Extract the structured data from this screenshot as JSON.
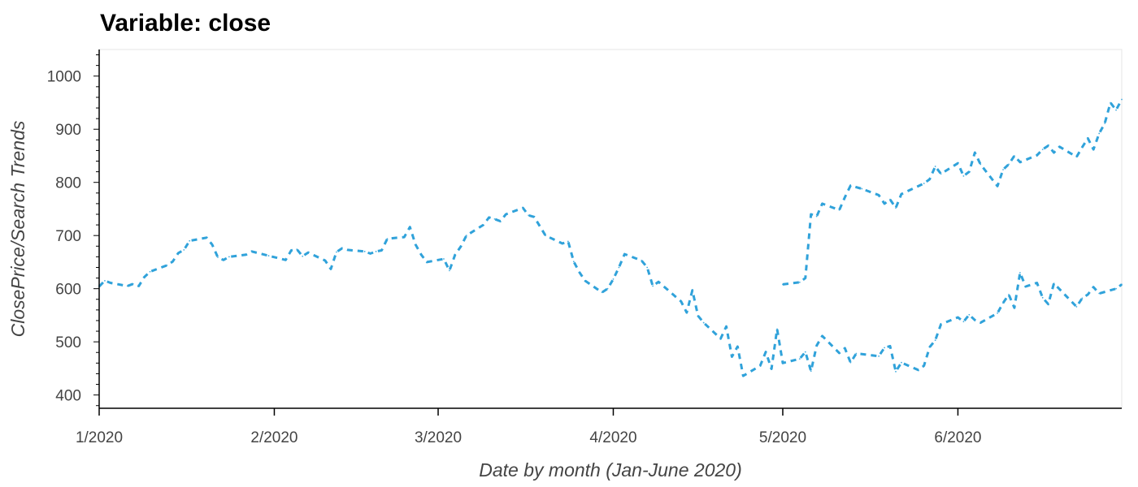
{
  "chart_data": {
    "type": "line",
    "title": "Variable: close",
    "xlabel": "Date by month (Jan-June 2020)",
    "ylabel": "ClosePrice/Search Trends",
    "xlim": [
      "2020-01-01",
      "2020-06-30"
    ],
    "ylim": [
      375,
      1050
    ],
    "x_ticks": [
      {
        "date": "2020-01-01",
        "label": "1/2020"
      },
      {
        "date": "2020-02-01",
        "label": "2/2020"
      },
      {
        "date": "2020-03-01",
        "label": "3/2020"
      },
      {
        "date": "2020-04-01",
        "label": "4/2020"
      },
      {
        "date": "2020-05-01",
        "label": "5/2020"
      },
      {
        "date": "2020-06-01",
        "label": "6/2020"
      }
    ],
    "y_ticks": [
      400,
      500,
      600,
      700,
      800,
      900,
      1000
    ],
    "grid": false,
    "series": [
      {
        "color": "#30a2da",
        "line_style": "dashed",
        "points": [
          [
            "2020-01-01",
            604
          ],
          [
            "2020-01-02",
            615
          ],
          [
            "2020-01-03",
            611
          ],
          [
            "2020-01-06",
            605
          ],
          [
            "2020-01-07",
            609
          ],
          [
            "2020-01-08",
            605
          ],
          [
            "2020-01-09",
            622
          ],
          [
            "2020-01-10",
            632
          ],
          [
            "2020-01-13",
            644
          ],
          [
            "2020-01-14",
            651
          ],
          [
            "2020-01-15",
            667
          ],
          [
            "2020-01-16",
            673
          ],
          [
            "2020-01-17",
            690
          ],
          [
            "2020-01-20",
            696
          ],
          [
            "2020-01-21",
            683
          ],
          [
            "2020-01-22",
            659
          ],
          [
            "2020-01-23",
            654
          ],
          [
            "2020-01-24",
            660
          ],
          [
            "2020-01-27",
            664
          ],
          [
            "2020-01-28",
            670
          ],
          [
            "2020-01-31",
            662
          ],
          [
            "2020-02-03",
            654
          ],
          [
            "2020-02-04",
            672
          ],
          [
            "2020-02-05",
            674
          ],
          [
            "2020-02-06",
            661
          ],
          [
            "2020-02-07",
            668
          ],
          [
            "2020-02-10",
            653
          ],
          [
            "2020-02-11",
            637
          ],
          [
            "2020-02-12",
            669
          ],
          [
            "2020-02-13",
            676
          ],
          [
            "2020-02-14",
            673
          ],
          [
            "2020-02-17",
            670
          ],
          [
            "2020-02-18",
            666
          ],
          [
            "2020-02-19",
            670
          ],
          [
            "2020-02-20",
            672
          ],
          [
            "2020-02-21",
            694
          ],
          [
            "2020-02-24",
            697
          ],
          [
            "2020-02-25",
            716
          ],
          [
            "2020-02-26",
            683
          ],
          [
            "2020-02-27",
            664
          ],
          [
            "2020-02-28",
            650
          ],
          [
            "2020-03-02",
            656
          ],
          [
            "2020-03-03",
            634
          ],
          [
            "2020-03-04",
            664
          ],
          [
            "2020-03-05",
            679
          ],
          [
            "2020-03-06",
            700
          ],
          [
            "2020-03-09",
            720
          ],
          [
            "2020-03-10",
            734
          ],
          [
            "2020-03-11",
            731
          ],
          [
            "2020-03-12",
            727
          ],
          [
            "2020-03-13",
            740
          ],
          [
            "2020-03-16",
            752
          ],
          [
            "2020-03-17",
            738
          ],
          [
            "2020-03-18",
            735
          ],
          [
            "2020-03-20",
            700
          ],
          [
            "2020-03-23",
            685
          ],
          [
            "2020-03-24",
            689
          ],
          [
            "2020-03-25",
            651
          ],
          [
            "2020-03-26",
            631
          ],
          [
            "2020-03-27",
            615
          ],
          [
            "2020-03-30",
            593
          ],
          [
            "2020-03-31",
            600
          ],
          [
            "2020-04-01",
            618
          ],
          [
            "2020-04-02",
            640
          ],
          [
            "2020-04-03",
            665
          ],
          [
            "2020-04-06",
            653
          ],
          [
            "2020-04-07",
            640
          ],
          [
            "2020-04-08",
            605
          ],
          [
            "2020-04-09",
            613
          ],
          [
            "2020-04-13",
            576
          ],
          [
            "2020-04-14",
            555
          ],
          [
            "2020-04-15",
            597
          ],
          [
            "2020-04-16",
            549
          ],
          [
            "2020-04-17",
            536
          ],
          [
            "2020-04-20",
            506
          ],
          [
            "2020-04-21",
            529
          ],
          [
            "2020-04-22",
            472
          ],
          [
            "2020-04-23",
            491
          ],
          [
            "2020-04-24",
            436
          ],
          [
            "2020-04-27",
            455
          ],
          [
            "2020-04-28",
            481
          ],
          [
            "2020-04-29",
            449
          ],
          [
            "2020-04-30",
            524
          ],
          [
            "2020-05-01",
            460
          ],
          [
            "2020-05-04",
            468
          ],
          [
            "2020-05-05",
            481
          ],
          [
            "2020-05-06",
            445
          ],
          [
            "2020-05-07",
            493
          ],
          [
            "2020-05-08",
            511
          ],
          [
            "2020-05-11",
            479
          ],
          [
            "2020-05-12",
            488
          ],
          [
            "2020-05-13",
            461
          ],
          [
            "2020-05-14",
            478
          ],
          [
            "2020-05-15",
            477
          ],
          [
            "2020-05-18",
            473
          ],
          [
            "2020-05-19",
            489
          ],
          [
            "2020-05-20",
            492
          ],
          [
            "2020-05-21",
            444
          ],
          [
            "2020-05-22",
            461
          ],
          [
            "2020-05-25",
            447
          ],
          [
            "2020-05-26",
            455
          ],
          [
            "2020-05-27",
            490
          ],
          [
            "2020-05-28",
            503
          ],
          [
            "2020-05-29",
            533
          ],
          [
            "2020-06-01",
            546
          ],
          [
            "2020-06-02",
            538
          ],
          [
            "2020-06-03",
            551
          ],
          [
            "2020-06-04",
            541
          ],
          [
            "2020-06-05",
            536
          ],
          [
            "2020-06-08",
            554
          ],
          [
            "2020-06-09",
            573
          ],
          [
            "2020-06-10",
            589
          ],
          [
            "2020-06-11",
            564
          ],
          [
            "2020-06-12",
            630
          ],
          [
            "2020-06-13",
            604
          ],
          [
            "2020-06-15",
            611
          ],
          [
            "2020-06-16",
            583
          ],
          [
            "2020-06-17",
            571
          ],
          [
            "2020-06-18",
            610
          ],
          [
            "2020-06-19",
            599
          ],
          [
            "2020-06-22",
            566
          ],
          [
            "2020-06-23",
            582
          ],
          [
            "2020-06-24",
            589
          ],
          [
            "2020-06-25",
            603
          ],
          [
            "2020-06-26",
            591
          ],
          [
            "2020-06-29",
            600
          ],
          [
            "2020-06-30",
            608
          ]
        ],
        "note_segment": "continues"
      },
      {
        "color": "#30a2da",
        "line_style": "dashed",
        "points": [
          [
            "2020-05-01",
            608
          ],
          [
            "2020-05-04",
            612
          ],
          [
            "2020-05-05",
            620
          ],
          [
            "2020-05-06",
            740
          ],
          [
            "2020-05-07",
            736
          ],
          [
            "2020-05-08",
            760
          ],
          [
            "2020-05-11",
            748
          ],
          [
            "2020-05-12",
            772
          ],
          [
            "2020-05-13",
            794
          ],
          [
            "2020-05-15",
            788
          ],
          [
            "2020-05-18",
            776
          ],
          [
            "2020-05-19",
            760
          ],
          [
            "2020-05-20",
            768
          ],
          [
            "2020-05-21",
            752
          ],
          [
            "2020-05-22",
            778
          ],
          [
            "2020-05-26",
            798
          ],
          [
            "2020-05-27",
            806
          ],
          [
            "2020-05-28",
            830
          ],
          [
            "2020-05-29",
            816
          ],
          [
            "2020-06-01",
            836
          ],
          [
            "2020-06-02",
            812
          ],
          [
            "2020-06-03",
            820
          ],
          [
            "2020-06-04",
            856
          ],
          [
            "2020-06-05",
            834
          ],
          [
            "2020-06-08",
            793
          ],
          [
            "2020-06-09",
            824
          ],
          [
            "2020-06-10",
            834
          ],
          [
            "2020-06-11",
            850
          ],
          [
            "2020-06-12",
            838
          ],
          [
            "2020-06-15",
            851
          ],
          [
            "2020-06-16",
            862
          ],
          [
            "2020-06-17",
            869
          ],
          [
            "2020-06-18",
            856
          ],
          [
            "2020-06-19",
            867
          ],
          [
            "2020-06-22",
            848
          ],
          [
            "2020-06-23",
            866
          ],
          [
            "2020-06-24",
            883
          ],
          [
            "2020-06-25",
            862
          ],
          [
            "2020-06-26",
            892
          ],
          [
            "2020-06-27",
            911
          ],
          [
            "2020-06-28",
            950
          ],
          [
            "2020-06-29",
            936
          ],
          [
            "2020-06-30",
            956
          ]
        ]
      }
    ]
  }
}
